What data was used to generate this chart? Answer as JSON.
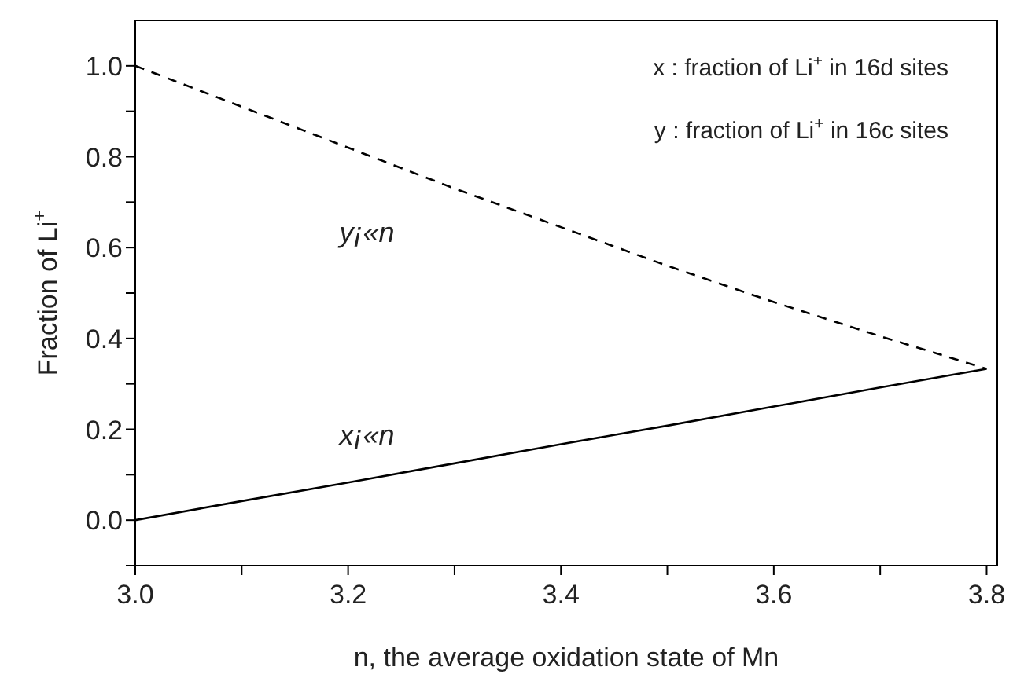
{
  "chart_data": {
    "type": "line",
    "xlabel": "n, the average oxidation state of Mn",
    "ylabel": "Fraction of Li$^{+}$",
    "x": [
      3.0,
      3.1,
      3.2,
      3.3,
      3.4,
      3.5,
      3.6,
      3.7,
      3.8
    ],
    "series": [
      {
        "name": "y¡«n",
        "color": "#000000",
        "line_style": "dashed",
        "values": [
          1.0,
          0.91,
          0.82,
          0.73,
          0.645,
          0.56,
          0.48,
          0.405,
          0.333
        ]
      },
      {
        "name": "x¡«n",
        "color": "#000000",
        "line_style": "solid",
        "values": [
          0.0,
          0.042,
          0.083,
          0.125,
          0.167,
          0.208,
          0.25,
          0.292,
          0.333
        ]
      }
    ],
    "xlim": [
      3.0,
      3.81
    ],
    "ylim": [
      -0.1,
      1.1
    ],
    "xticks": [
      {
        "value": 3.0,
        "label": "3.0"
      },
      {
        "value": 3.1,
        "label": null
      },
      3.2,
      {
        "value": 3.3,
        "label": null
      },
      3.4,
      {
        "value": 3.5,
        "label": null
      },
      3.6,
      {
        "value": 3.7,
        "label": null
      },
      3.8
    ],
    "yticks": [
      {
        "value": -0.1,
        "label": null
      },
      {
        "value": 0,
        "label": "0.0"
      },
      {
        "value": 0.1,
        "label": null
      },
      0.2,
      {
        "value": 0.3,
        "label": null
      },
      0.4,
      {
        "value": 0.5,
        "label": null
      },
      0.6,
      {
        "value": 0.7,
        "label": null
      },
      0.8,
      {
        "value": 0.9,
        "label": null
      },
      {
        "value": 1.0,
        "label": "1.0"
      }
    ],
    "grid": false,
    "legend": false,
    "marker": "none",
    "annotations": [
      "x : fraction of Li$^{+}$ in 16d sites",
      "y : fraction of Li$^{+}$ in 16c sites"
    ]
  }
}
